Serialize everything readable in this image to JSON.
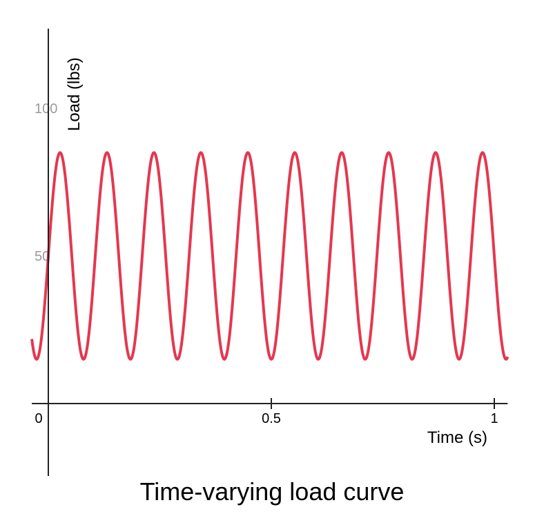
{
  "chart_data": {
    "type": "line",
    "title": "Time-varying load curve",
    "xlabel": "Time (s)",
    "ylabel": "Load (lbs)",
    "xlim": [
      -0.037,
      1.03
    ],
    "ylim": [
      -27,
      127
    ],
    "x_ticks": [
      {
        "value": 0,
        "label": "0"
      },
      {
        "value": 0.5,
        "label": "0.5"
      },
      {
        "value": 1,
        "label": "1"
      }
    ],
    "y_ticks": [
      {
        "value": 50,
        "label": "50"
      },
      {
        "value": 100,
        "label": "100"
      }
    ],
    "grid": false,
    "series": [
      {
        "color": "#e3384f",
        "function": "50 + 35*sin(2*pi*9.5*t)",
        "x": [
          -0.037,
          -0.0253,
          0,
          0.0263,
          0.0526,
          0.0789,
          0.1053,
          0.1316,
          0.1579,
          0.1842,
          0.2105,
          0.2368,
          0.2632,
          0.2895,
          0.3158,
          0.3421,
          0.3684,
          0.3947,
          0.4211,
          0.4474,
          0.4737,
          0.5,
          0.5263,
          0.5526,
          0.5789,
          0.6053,
          0.6316,
          0.6579,
          0.6842,
          0.7105,
          0.7368,
          0.7632,
          0.7895,
          0.8158,
          0.8421,
          0.8684,
          0.8947,
          0.9211,
          0.9474,
          0.9737,
          1.0,
          1.0263
        ],
        "y": [
          19,
          15,
          50,
          85,
          50,
          15,
          50,
          85,
          50,
          15,
          50,
          85,
          50,
          15,
          50,
          85,
          50,
          15,
          50,
          85,
          50,
          15,
          50,
          85,
          50,
          15,
          50,
          85,
          50,
          15,
          50,
          85,
          50,
          15,
          50,
          85,
          50,
          15,
          50,
          85,
          50,
          15
        ]
      }
    ]
  }
}
